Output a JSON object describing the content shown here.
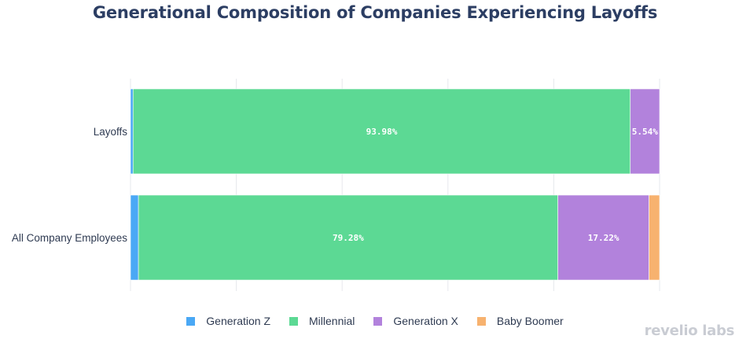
{
  "chart_data": {
    "type": "bar",
    "orientation": "horizontal",
    "stacked": true,
    "title": "Generational Composition of Companies Experiencing Layoffs",
    "categories": [
      "Layoffs",
      "All Company Employees"
    ],
    "series": [
      {
        "name": "Generation Z",
        "color": "#4aa8f5",
        "values": [
          0.48,
          1.5
        ],
        "labels": [
          "",
          ""
        ]
      },
      {
        "name": "Millennial",
        "color": "#5cd994",
        "values": [
          93.98,
          79.28
        ],
        "labels": [
          "93.98%",
          "79.28%"
        ]
      },
      {
        "name": "Generation X",
        "color": "#b282dc",
        "values": [
          5.54,
          17.22
        ],
        "labels": [
          "5.54%",
          "17.22%"
        ]
      },
      {
        "name": "Baby Boomer",
        "color": "#f7b26f",
        "values": [
          0.0,
          2.0
        ],
        "labels": [
          "",
          ""
        ]
      }
    ],
    "xlim": [
      0,
      100
    ],
    "grid": true,
    "legend": "bottom"
  },
  "brand": {
    "logo_text": "revelio labs"
  }
}
